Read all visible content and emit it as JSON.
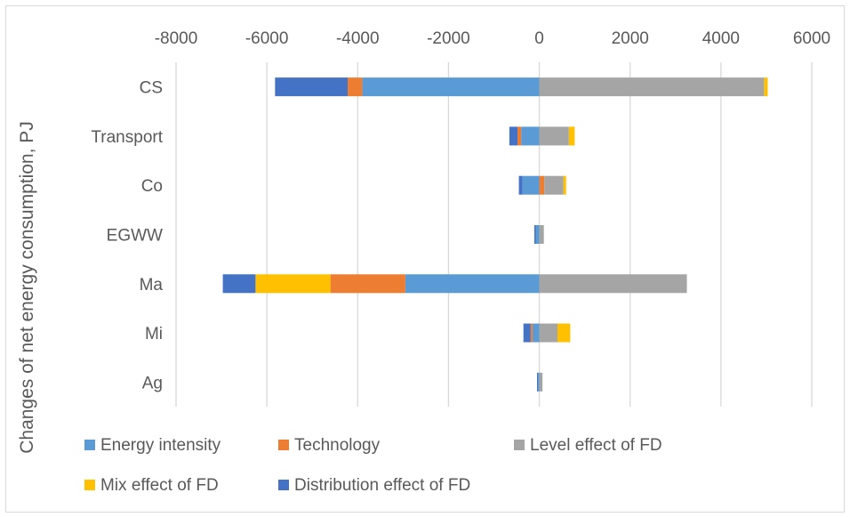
{
  "chart_data": {
    "type": "bar",
    "orientation": "horizontal",
    "stacked": true,
    "ylabel": "Changes of net energy consumption, PJ",
    "xlim": [
      -8000,
      6000
    ],
    "xticks": [
      "-8000",
      "-6000",
      "-4000",
      "-2000",
      "0",
      "2000",
      "4000",
      "6000"
    ],
    "x_axis_position": "top",
    "grid": true,
    "legend_position": "bottom",
    "categories": [
      "CS",
      "Transport",
      "Co",
      "EGWW",
      "Ma",
      "Mi",
      "Ag"
    ],
    "series": [
      {
        "name": "Energy intensity",
        "color": "#5b9bd5",
        "values": [
          -3900,
          -400,
          -370,
          -80,
          -2950,
          -150,
          -30
        ]
      },
      {
        "name": "Technology",
        "color": "#ed7d31",
        "values": [
          -320,
          -80,
          110,
          0,
          -1650,
          -40,
          0
        ]
      },
      {
        "name": "Level effect of FD",
        "color": "#a5a5a5",
        "values": [
          4950,
          650,
          420,
          100,
          3250,
          400,
          70
        ]
      },
      {
        "name": "Mix effect of FD",
        "color": "#ffc000",
        "values": [
          80,
          130,
          60,
          0,
          -1650,
          280,
          0
        ]
      },
      {
        "name": "Distribution  effect of FD",
        "color": "#4472c4",
        "values": [
          -1600,
          -180,
          -80,
          -30,
          -720,
          -160,
          -20
        ]
      }
    ]
  }
}
